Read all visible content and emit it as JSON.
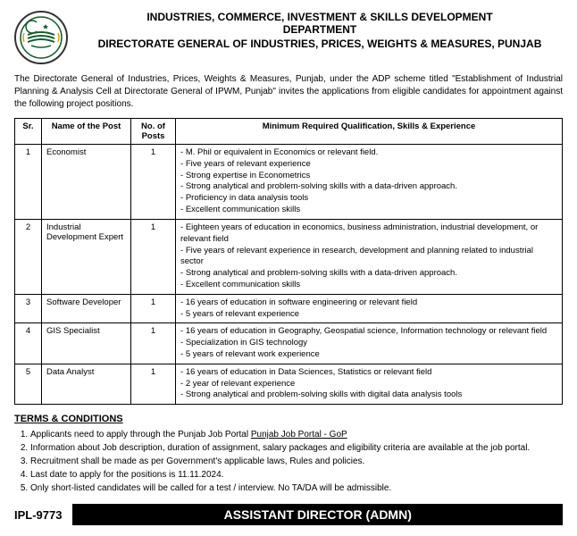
{
  "header": {
    "line1": "INDUSTRIES, COMMERCE, INVESTMENT & SKILLS DEVELOPMENT",
    "line2": "DEPARTMENT",
    "line3": "DIRECTORATE GENERAL OF INDUSTRIES, PRICES, WEIGHTS & MEASURES, PUNJAB"
  },
  "intro": "The Directorate General of Industries, Prices, Weights & Measures, Punjab, under the ADP scheme titled \"Establishment of Industrial Planning & Analysis Cell at Directorate General of IPWM, Punjab\" invites the applications from eligible candidates for appointment against the following project positions.",
  "table": {
    "headers": {
      "sr": "Sr.",
      "name": "Name of the Post",
      "num": "No. of Posts",
      "qual": "Minimum Required Qualification, Skills & Experience"
    },
    "rows": [
      {
        "sr": "1",
        "name": "Economist",
        "num": "1",
        "quals": [
          "M. Phil or equivalent in Economics or relevant field.",
          "Five years of relevant experience",
          "Strong expertise in Econometrics",
          "Strong analytical and problem-solving skills with a data-driven approach.",
          "Proficiency in data analysis tools",
          "Excellent communication skills"
        ]
      },
      {
        "sr": "2",
        "name": "Industrial Development Expert",
        "num": "1",
        "quals": [
          "Eighteen years of education in economics, business administration, industrial development, or relevant field",
          "Five years of relevant experience in research, development and planning related to industrial sector",
          "Strong analytical and problem-solving skills with a data-driven approach.",
          "Excellent communication skills"
        ]
      },
      {
        "sr": "3",
        "name": "Software Developer",
        "num": "1",
        "quals": [
          "16 years of education in software engineering or relevant field",
          "5 years of relevant experience"
        ]
      },
      {
        "sr": "4",
        "name": "GIS Specialist",
        "num": "1",
        "quals": [
          "16 years of education in Geography, Geospatial science, Information technology or relevant field",
          "Specialization in GIS technology",
          "5 years of relevant work experience"
        ]
      },
      {
        "sr": "5",
        "name": "Data Analyst",
        "num": "1",
        "quals": [
          "16 years of education in Data Sciences, Statistics or relevant field",
          "2 year of relevant experience",
          "Strong analytical and problem-solving skills with digital data analysis tools"
        ]
      }
    ]
  },
  "terms": {
    "heading": "TERMS & CONDITIONS",
    "items": [
      "Applicants need to apply through the Punjab Job Portal Punjab Job Portal - GoP",
      "Information about Job description, duration of assignment, salary packages and eligibility criteria are available at the job portal.",
      "Recruitment shall be made as per Government's applicable laws, Rules and policies.",
      "Last date to apply for the positions is 11.11.2024.",
      "Only short-listed candidates will be called for a test / interview. No TA/DA will be admissible."
    ],
    "portal_text": "Punjab Job Portal - GoP"
  },
  "footer": {
    "left": "IPL-9773",
    "right": "ASSISTANT DIRECTOR (ADMN)"
  }
}
